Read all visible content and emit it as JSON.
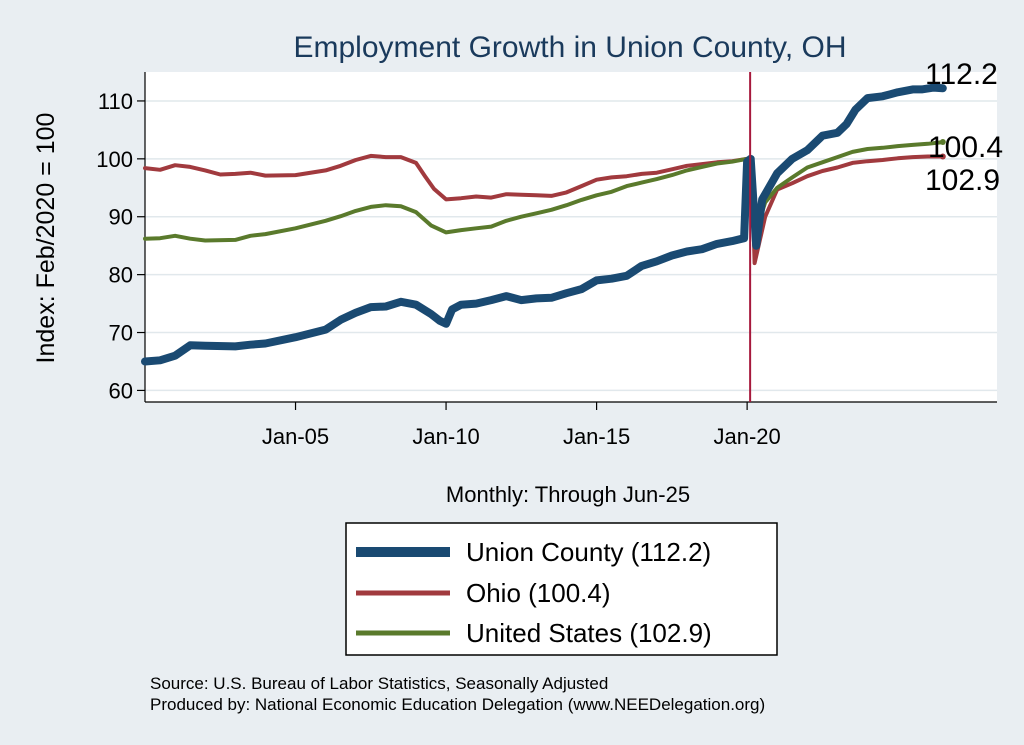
{
  "chart_data": {
    "type": "line",
    "title": "Employment Growth in Union  County, OH",
    "xlabel": "Monthly: Through Jun-25",
    "ylabel": "Index: Feb/2020 = 100",
    "ylim": [
      58,
      115
    ],
    "xlim": [
      2000.0,
      2028.3
    ],
    "yticks": [
      60,
      70,
      80,
      90,
      100,
      110
    ],
    "xticks": [
      {
        "label": "Jan-05",
        "x": 2005.0
      },
      {
        "label": "Jan-10",
        "x": 2010.0
      },
      {
        "label": "Jan-15",
        "x": 2015.0
      },
      {
        "label": "Jan-20",
        "x": 2020.0
      }
    ],
    "reference_line_x": 2020.1,
    "series": [
      {
        "name": "Union  County",
        "legend": "Union  County (112.2)",
        "end_label": "112.2",
        "color": "#1a4a72",
        "points": [
          [
            2000.0,
            65
          ],
          [
            2000.5,
            65.2
          ],
          [
            2001.0,
            66
          ],
          [
            2001.5,
            67.8
          ],
          [
            2002.0,
            67.7
          ],
          [
            2003.0,
            67.6
          ],
          [
            2003.5,
            67.9
          ],
          [
            2004.0,
            68.1
          ],
          [
            2005.0,
            69.2
          ],
          [
            2006.0,
            70.5
          ],
          [
            2006.5,
            72.2
          ],
          [
            2007.0,
            73.4
          ],
          [
            2007.5,
            74.4
          ],
          [
            2008.0,
            74.5
          ],
          [
            2008.5,
            75.3
          ],
          [
            2009.0,
            74.8
          ],
          [
            2009.5,
            73.2
          ],
          [
            2009.8,
            72
          ],
          [
            2010.0,
            71.5
          ],
          [
            2010.2,
            74
          ],
          [
            2010.5,
            74.8
          ],
          [
            2011.0,
            75
          ],
          [
            2011.5,
            75.6
          ],
          [
            2012.0,
            76.3
          ],
          [
            2012.5,
            75.6
          ],
          [
            2013.0,
            75.9
          ],
          [
            2013.5,
            76
          ],
          [
            2014.0,
            76.8
          ],
          [
            2014.5,
            77.5
          ],
          [
            2015.0,
            79
          ],
          [
            2015.5,
            79.3
          ],
          [
            2016.0,
            79.8
          ],
          [
            2016.5,
            81.5
          ],
          [
            2017.0,
            82.3
          ],
          [
            2017.5,
            83.3
          ],
          [
            2018.0,
            84
          ],
          [
            2018.5,
            84.4
          ],
          [
            2019.0,
            85.3
          ],
          [
            2019.5,
            85.8
          ],
          [
            2019.9,
            86.3
          ],
          [
            2020.0,
            99.5
          ],
          [
            2020.12,
            100
          ],
          [
            2020.3,
            85
          ],
          [
            2020.5,
            93
          ],
          [
            2021.0,
            97.5
          ],
          [
            2021.5,
            100
          ],
          [
            2022.0,
            101.5
          ],
          [
            2022.5,
            104
          ],
          [
            2023.0,
            104.5
          ],
          [
            2023.3,
            106
          ],
          [
            2023.6,
            108.5
          ],
          [
            2024.0,
            110.5
          ],
          [
            2024.5,
            110.8
          ],
          [
            2025.0,
            111.5
          ],
          [
            2025.5,
            112.0
          ],
          [
            2025.8,
            112
          ],
          [
            2026.2,
            112.3
          ],
          [
            2026.5,
            112.2
          ]
        ]
      },
      {
        "name": "Ohio",
        "legend": "Ohio (100.4)",
        "end_label": "100.4",
        "color": "#a13a3e",
        "points": [
          [
            2000.0,
            98.4
          ],
          [
            2000.5,
            98.1
          ],
          [
            2001.0,
            98.9
          ],
          [
            2001.5,
            98.6
          ],
          [
            2002.0,
            98
          ],
          [
            2002.5,
            97.3
          ],
          [
            2003.0,
            97.4
          ],
          [
            2003.5,
            97.6
          ],
          [
            2004.0,
            97.1
          ],
          [
            2005.0,
            97.2
          ],
          [
            2006.0,
            98
          ],
          [
            2006.5,
            98.8
          ],
          [
            2007.0,
            99.8
          ],
          [
            2007.5,
            100.5
          ],
          [
            2008.0,
            100.3
          ],
          [
            2008.5,
            100.3
          ],
          [
            2009.0,
            99.3
          ],
          [
            2009.3,
            97
          ],
          [
            2009.6,
            94.8
          ],
          [
            2010.0,
            93
          ],
          [
            2010.5,
            93.2
          ],
          [
            2011.0,
            93.5
          ],
          [
            2011.5,
            93.3
          ],
          [
            2012.0,
            93.9
          ],
          [
            2012.5,
            93.8
          ],
          [
            2013.0,
            93.7
          ],
          [
            2013.5,
            93.6
          ],
          [
            2014.0,
            94.2
          ],
          [
            2014.5,
            95.3
          ],
          [
            2015.0,
            96.4
          ],
          [
            2015.5,
            96.8
          ],
          [
            2016.0,
            97
          ],
          [
            2016.5,
            97.4
          ],
          [
            2017.0,
            97.6
          ],
          [
            2017.5,
            98.2
          ],
          [
            2018.0,
            98.8
          ],
          [
            2018.5,
            99.1
          ],
          [
            2019.0,
            99.4
          ],
          [
            2019.5,
            99.6
          ],
          [
            2020.0,
            100
          ],
          [
            2020.1,
            100
          ],
          [
            2020.2,
            91
          ],
          [
            2020.25,
            82
          ],
          [
            2020.6,
            90
          ],
          [
            2021.0,
            94.7
          ],
          [
            2021.5,
            95.8
          ],
          [
            2022.0,
            97
          ],
          [
            2022.5,
            97.9
          ],
          [
            2023.0,
            98.5
          ],
          [
            2023.5,
            99.3
          ],
          [
            2024.0,
            99.6
          ],
          [
            2024.5,
            99.8
          ],
          [
            2025.0,
            100.1
          ],
          [
            2025.5,
            100.3
          ],
          [
            2026.0,
            100.4
          ],
          [
            2026.5,
            100.4
          ]
        ]
      },
      {
        "name": "United States",
        "legend": "United States (102.9)",
        "end_label": "102.9",
        "color": "#5a7a2c",
        "points": [
          [
            2000.0,
            86.2
          ],
          [
            2000.5,
            86.3
          ],
          [
            2001.0,
            86.7
          ],
          [
            2001.5,
            86.2
          ],
          [
            2002.0,
            85.9
          ],
          [
            2003.0,
            86
          ],
          [
            2003.5,
            86.7
          ],
          [
            2004.0,
            87
          ],
          [
            2005.0,
            88
          ],
          [
            2006.0,
            89.3
          ],
          [
            2006.5,
            90.1
          ],
          [
            2007.0,
            91
          ],
          [
            2007.5,
            91.7
          ],
          [
            2008.0,
            92
          ],
          [
            2008.5,
            91.8
          ],
          [
            2009.0,
            90.8
          ],
          [
            2009.5,
            88.5
          ],
          [
            2010.0,
            87.3
          ],
          [
            2010.5,
            87.7
          ],
          [
            2011.0,
            88
          ],
          [
            2011.5,
            88.3
          ],
          [
            2012.0,
            89.3
          ],
          [
            2012.5,
            90
          ],
          [
            2013.0,
            90.6
          ],
          [
            2013.5,
            91.2
          ],
          [
            2014.0,
            92
          ],
          [
            2014.5,
            92.9
          ],
          [
            2015.0,
            93.7
          ],
          [
            2015.5,
            94.3
          ],
          [
            2016.0,
            95.3
          ],
          [
            2016.5,
            95.9
          ],
          [
            2017.0,
            96.5
          ],
          [
            2017.5,
            97.2
          ],
          [
            2018.0,
            98
          ],
          [
            2018.5,
            98.6
          ],
          [
            2019.0,
            99.2
          ],
          [
            2019.5,
            99.5
          ],
          [
            2020.0,
            100
          ],
          [
            2020.1,
            100
          ],
          [
            2020.2,
            90
          ],
          [
            2020.25,
            86.7
          ],
          [
            2020.6,
            92.5
          ],
          [
            2021.0,
            95
          ],
          [
            2021.5,
            96.8
          ],
          [
            2022.0,
            98.5
          ],
          [
            2022.5,
            99.4
          ],
          [
            2023.0,
            100.3
          ],
          [
            2023.5,
            101.2
          ],
          [
            2024.0,
            101.7
          ],
          [
            2024.5,
            101.9
          ],
          [
            2025.0,
            102.2
          ],
          [
            2025.5,
            102.4
          ],
          [
            2026.0,
            102.6
          ],
          [
            2026.5,
            102.9
          ]
        ]
      }
    ],
    "legend_position": "bottom-center"
  },
  "source_lines": [
    "Source: U.S. Bureau of Labor Statistics, Seasonally Adjusted",
    "Produced by: National Economic Education Delegation (www.NEEDelegation.org)"
  ],
  "colors": {
    "background": "#e9eef2",
    "plot_background": "#ffffff",
    "title": "#1a3a5c",
    "grid": "#e1e8ec",
    "reference_line": "#a6193c"
  }
}
